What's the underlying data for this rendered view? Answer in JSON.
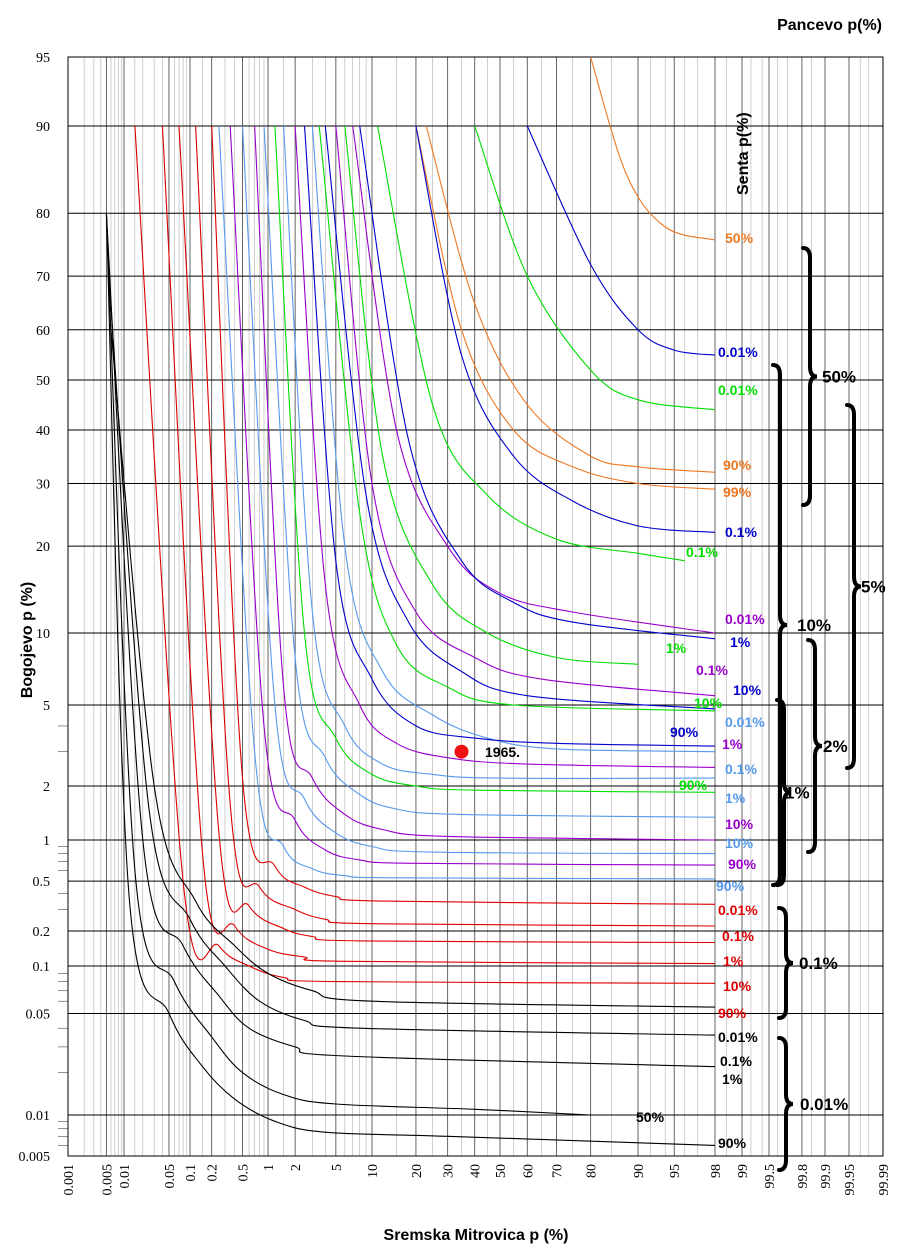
{
  "chart_data": {
    "type": "line",
    "title": "",
    "xlabel": "Sremska Mitrovica p (%)",
    "ylabel": "Bogojevo  p (%)",
    "top_right_label": "Pancevo p(%)",
    "senta_label": "Senta p(%)",
    "x_scale": "probability",
    "y_scale": "probability",
    "xlim": [
      0.001,
      99.99
    ],
    "ylim": [
      0.005,
      95
    ],
    "grid": true,
    "x_ticks": [
      "0.001",
      "0.005",
      "0.01",
      "0.05",
      "0.1",
      "0.2",
      "0.5",
      "1",
      "2",
      "5",
      "10",
      "20",
      "30",
      "40",
      "50",
      "60",
      "70",
      "80",
      "90",
      "95",
      "98",
      "99",
      "99.5",
      "99.8",
      "99.9",
      "99.95",
      "99.99"
    ],
    "y_ticks": [
      "95",
      "90",
      "80",
      "70",
      "60",
      "50",
      "40",
      "30",
      "20",
      "10",
      "5",
      "2",
      "1",
      "0.5",
      "0.2",
      "0.1",
      "0.05",
      "0.01",
      "0.005"
    ],
    "series": [
      {
        "group": "Senta 50%",
        "name": "50%",
        "color": "#ee7722",
        "x": [
          80,
          88,
          94,
          98
        ],
        "y": [
          95,
          85,
          78,
          76
        ]
      },
      {
        "group": "Senta 50%",
        "name": "0.01%",
        "color": "#0000cc",
        "x": [
          60,
          80,
          90,
          95,
          98
        ],
        "y": [
          90,
          72,
          60,
          56,
          55
        ]
      },
      {
        "group": "Senta 50%",
        "name": "0.01%",
        "color": "#00dd00",
        "x": [
          40,
          60,
          80,
          90,
          98
        ],
        "y": [
          90,
          70,
          52,
          46,
          44
        ]
      },
      {
        "group": "Senta 50%",
        "name": "90%",
        "color": "#ee7722",
        "x": [
          23,
          40,
          60,
          80,
          90,
          98
        ],
        "y": [
          90,
          65,
          45,
          35,
          33,
          32
        ]
      },
      {
        "group": "Senta 50%",
        "name": "99%",
        "color": "#ee7722",
        "x": [
          20,
          35,
          55,
          75,
          90,
          98
        ],
        "y": [
          90,
          60,
          40,
          33,
          30,
          29
        ]
      },
      {
        "group": "Senta 10%",
        "name": "0.1%",
        "color": "#0000cc",
        "x": [
          20,
          35,
          55,
          75,
          90,
          98
        ],
        "y": [
          90,
          55,
          35,
          27,
          23,
          22
        ]
      },
      {
        "group": "Senta 10%",
        "name": "0.1%",
        "color": "#00dd00",
        "x": [
          11,
          25,
          45,
          70,
          90,
          96
        ],
        "y": [
          90,
          45,
          28,
          21,
          19,
          18
        ]
      },
      {
        "group": "Senta 10%",
        "name": "0.01%",
        "color": "#9900cc",
        "x": [
          7,
          15,
          30,
          50,
          75,
          98
        ],
        "y": [
          90,
          40,
          20,
          14,
          12,
          10
        ]
      },
      {
        "group": "Senta 10%",
        "name": "1%",
        "color": "#0000cc",
        "x": [
          8,
          18,
          35,
          55,
          75,
          98
        ],
        "y": [
          90,
          38,
          18,
          13,
          11,
          9.5
        ]
      },
      {
        "group": "Senta 10%",
        "name": "1%",
        "color": "#00dd00",
        "x": [
          6,
          12,
          25,
          45,
          70,
          90
        ],
        "y": [
          90,
          35,
          15,
          10,
          8,
          7.5
        ]
      },
      {
        "group": "Senta 10%",
        "name": "0.1%",
        "color": "#9900cc",
        "x": [
          5,
          10,
          20,
          40,
          65,
          98
        ],
        "y": [
          90,
          30,
          12,
          8,
          6.5,
          5.5
        ]
      },
      {
        "group": "Senta 10%",
        "name": "10%",
        "color": "#0000cc",
        "x": [
          4,
          9,
          18,
          35,
          60,
          98
        ],
        "y": [
          90,
          28,
          11,
          7,
          5.5,
          4.8
        ]
      },
      {
        "group": "Senta 10%",
        "name": "10%",
        "color": "#00dd00",
        "x": [
          3.5,
          8,
          15,
          30,
          55,
          98
        ],
        "y": [
          90,
          25,
          9,
          6,
          5,
          4.7
        ]
      },
      {
        "group": "Senta 1%",
        "name": "0.01%",
        "color": "#5599ee",
        "x": [
          3,
          6,
          12,
          25,
          45,
          70,
          98
        ],
        "y": [
          90,
          20,
          7,
          4.5,
          3.5,
          3.1,
          3
        ]
      },
      {
        "group": "Senta 10%",
        "name": "90%",
        "color": "#0000cc",
        "x": [
          2.5,
          5,
          10,
          20,
          40,
          70,
          98
        ],
        "y": [
          90,
          18,
          6.5,
          4,
          3.5,
          3.3,
          3.2
        ]
      },
      {
        "group": "Senta 1%",
        "name": "1%",
        "color": "#9900cc",
        "x": [
          2,
          4,
          8,
          15,
          30,
          60,
          98
        ],
        "y": [
          90,
          15,
          5,
          3.3,
          2.8,
          2.6,
          2.5
        ]
      },
      {
        "group": "Senta 1%",
        "name": "0.1%",
        "color": "#5599ee",
        "x": [
          1.5,
          3,
          6,
          12,
          25,
          50,
          98
        ],
        "y": [
          90,
          12,
          4,
          2.6,
          2.3,
          2.2,
          2.2
        ]
      },
      {
        "group": "Senta 10%",
        "name": "90%",
        "color": "#00dd00",
        "x": [
          1.2,
          2.5,
          5,
          10,
          20,
          40,
          98
        ],
        "y": [
          90,
          10,
          3.5,
          2.3,
          2,
          1.9,
          1.85
        ]
      },
      {
        "group": "Senta 1%",
        "name": "1%",
        "color": "#5599ee",
        "x": [
          0.9,
          2,
          4,
          8,
          15,
          35,
          98
        ],
        "y": [
          90,
          8,
          2.8,
          1.8,
          1.5,
          1.4,
          1.35
        ]
      },
      {
        "group": "Senta 1%",
        "name": "10%",
        "color": "#9900cc",
        "x": [
          0.7,
          1.5,
          3,
          6,
          12,
          30,
          98
        ],
        "y": [
          90,
          6,
          2.2,
          1.4,
          1.15,
          1.05,
          1
        ]
      },
      {
        "group": "Senta 1%",
        "name": "10%",
        "color": "#5599ee",
        "x": [
          0.5,
          1.2,
          2.5,
          5,
          10,
          25,
          98
        ],
        "y": [
          90,
          5,
          1.7,
          1.1,
          0.9,
          0.82,
          0.8
        ]
      },
      {
        "group": "Senta 1%",
        "name": "90%",
        "color": "#9900cc",
        "x": [
          0.35,
          0.9,
          2,
          4,
          8,
          20,
          98
        ],
        "y": [
          90,
          4,
          1.3,
          0.85,
          0.72,
          0.68,
          0.66
        ]
      },
      {
        "group": "Senta 1%",
        "name": "90%",
        "color": "#5599ee",
        "x": [
          0.25,
          0.7,
          1.5,
          3,
          6,
          15,
          98
        ],
        "y": [
          90,
          3,
          0.9,
          0.62,
          0.55,
          0.53,
          0.52
        ]
      },
      {
        "group": "Senta 0.1%",
        "name": "0.01%",
        "color": "#dd0000",
        "x": [
          0.2,
          0.5,
          1.2,
          2.5,
          5,
          12,
          98
        ],
        "y": [
          90,
          2.2,
          0.65,
          0.45,
          0.38,
          0.35,
          0.33
        ]
      },
      {
        "group": "Senta 0.1%",
        "name": "0.1%",
        "color": "#dd0000",
        "x": [
          0.12,
          0.35,
          0.8,
          2,
          4,
          10,
          98
        ],
        "y": [
          90,
          1.6,
          0.45,
          0.3,
          0.25,
          0.23,
          0.22
        ]
      },
      {
        "group": "Senta 0.1%",
        "name": "1%",
        "color": "#dd0000",
        "x": [
          0.07,
          0.25,
          0.6,
          1.5,
          3,
          8,
          98
        ],
        "y": [
          90,
          1.1,
          0.32,
          0.21,
          0.18,
          0.165,
          0.16
        ]
      },
      {
        "group": "Senta 0.1%",
        "name": "10%",
        "color": "#dd0000",
        "x": [
          0.04,
          0.15,
          0.4,
          1,
          2.5,
          6,
          98
        ],
        "y": [
          90,
          0.8,
          0.22,
          0.14,
          0.12,
          0.11,
          0.105
        ]
      },
      {
        "group": "Senta 0.1%",
        "name": "90%",
        "color": "#dd0000",
        "x": [
          0.015,
          0.08,
          0.25,
          0.6,
          1.5,
          5,
          98
        ],
        "y": [
          90,
          0.5,
          0.15,
          0.1,
          0.085,
          0.08,
          0.078
        ]
      },
      {
        "group": "Senta 0.01%",
        "name": "0.01%",
        "color": "#000000",
        "x": [
          0.006,
          0.03,
          0.12,
          0.4,
          1,
          3,
          10,
          98
        ],
        "y": [
          60,
          2,
          0.35,
          0.15,
          0.09,
          0.07,
          0.06,
          0.055
        ]
      },
      {
        "group": "Senta 0.01%",
        "name": "0.1%",
        "color": "#000000",
        "x": [
          0.0055,
          0.025,
          0.1,
          0.3,
          0.8,
          2.5,
          8,
          98
        ],
        "y": [
          70,
          1.5,
          0.25,
          0.1,
          0.06,
          0.045,
          0.04,
          0.036
        ]
      },
      {
        "group": "Senta 0.01%",
        "name": "1%",
        "color": "#000000",
        "x": [
          0.005,
          0.02,
          0.08,
          0.25,
          0.6,
          2,
          6,
          98
        ],
        "y": [
          80,
          1,
          0.15,
          0.065,
          0.04,
          0.03,
          0.026,
          0.022
        ]
      },
      {
        "group": "Senta 0.01%",
        "name": "50%",
        "color": "#000000",
        "x": [
          0.005,
          0.015,
          0.06,
          0.2,
          0.5,
          1.5,
          5,
          40,
          80
        ],
        "y": [
          80,
          0.6,
          0.08,
          0.035,
          0.02,
          0.014,
          0.012,
          0.011,
          0.01
        ]
      },
      {
        "group": "Senta 0.01%",
        "name": "90%",
        "color": "#000000",
        "x": [
          0.005,
          0.012,
          0.05,
          0.15,
          0.4,
          1.2,
          4,
          30,
          98
        ],
        "y": [
          80,
          0.4,
          0.05,
          0.022,
          0.013,
          0.009,
          0.0075,
          0.007,
          0.006
        ]
      }
    ],
    "curve_labels": [
      {
        "text": "50%",
        "color": "#ee7722"
      },
      {
        "text": "0.01%",
        "color": "#0000cc"
      },
      {
        "text": "0.01%",
        "color": "#00dd00"
      },
      {
        "text": "90%",
        "color": "#ee7722"
      },
      {
        "text": "99%",
        "color": "#ee7722"
      },
      {
        "text": "0.1%",
        "color": "#0000cc"
      },
      {
        "text": "0.1%",
        "color": "#00dd00"
      },
      {
        "text": "0.01%",
        "color": "#9900cc"
      },
      {
        "text": "1%",
        "color": "#0000cc"
      },
      {
        "text": "1%",
        "color": "#00dd00"
      },
      {
        "text": "0.1%",
        "color": "#9900cc"
      },
      {
        "text": "10%",
        "color": "#0000cc"
      },
      {
        "text": "10%",
        "color": "#00dd00"
      },
      {
        "text": "90%",
        "color": "#0000cc"
      },
      {
        "text": "0.01%",
        "color": "#5599ee"
      },
      {
        "text": "1%",
        "color": "#9900cc"
      },
      {
        "text": "0.1%",
        "color": "#5599ee"
      },
      {
        "text": "90%",
        "color": "#00dd00"
      },
      {
        "text": "1%",
        "color": "#5599ee"
      },
      {
        "text": "10%",
        "color": "#9900cc"
      },
      {
        "text": "10%",
        "color": "#5599ee"
      },
      {
        "text": "90%",
        "color": "#9900cc"
      },
      {
        "text": "90%",
        "color": "#5599ee"
      },
      {
        "text": "0.01%",
        "color": "#dd0000"
      },
      {
        "text": "0.1%",
        "color": "#dd0000"
      },
      {
        "text": "1%",
        "color": "#dd0000"
      },
      {
        "text": "10%",
        "color": "#dd0000"
      },
      {
        "text": "90%",
        "color": "#dd0000"
      },
      {
        "text": "0.01%",
        "color": "#000000"
      },
      {
        "text": "0.1%",
        "color": "#000000"
      },
      {
        "text": "1%",
        "color": "#000000"
      },
      {
        "text": "50%",
        "color": "#000000"
      },
      {
        "text": "90%",
        "color": "#000000"
      }
    ],
    "braces": [
      "50%",
      "10%",
      "5%",
      "2%",
      "1%",
      "0.1%",
      "0.01%"
    ],
    "event_point": {
      "label": "1965.",
      "x": 35,
      "y": 3,
      "color": "#ee1111"
    }
  }
}
